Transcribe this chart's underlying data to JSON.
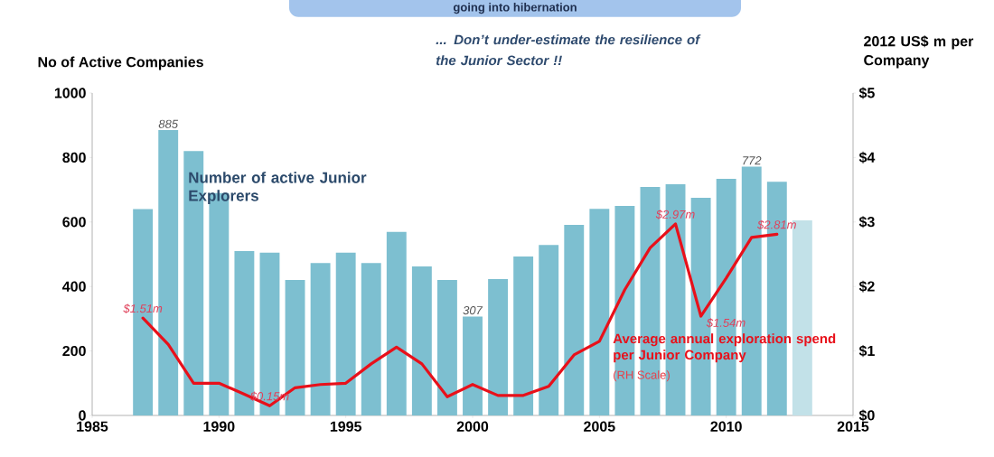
{
  "chart_data": {
    "type": "bar",
    "ylabel": "No of Active Companies",
    "y2label": "2012 US$ m per Company",
    "annotations": [
      "going into hibernation",
      "... Don’t under-estimate the resilience of the Junior Sector !!",
      "(RH Scale)"
    ],
    "xlim": [
      1985,
      2015
    ],
    "xticks": [
      1985,
      1990,
      1995,
      2000,
      2005,
      2010,
      2015
    ],
    "ylim": [
      0,
      1000
    ],
    "yticks": [
      0,
      200,
      400,
      600,
      800,
      1000
    ],
    "y2lim": [
      0,
      5
    ],
    "y2ticks": [
      {
        "value": 0,
        "label": "$0"
      },
      {
        "value": 1,
        "label": "$1"
      },
      {
        "value": 2,
        "label": "$2"
      },
      {
        "value": 3,
        "label": "$3"
      },
      {
        "value": 4,
        "label": "$4"
      },
      {
        "value": 5,
        "label": "$5"
      }
    ],
    "marker": "none",
    "series": [
      {
        "name": "Number of active Junior Explorers",
        "x": [
          1987,
          1988,
          1989,
          1990,
          1991,
          1992,
          1993,
          1994,
          1995,
          1996,
          1997,
          1998,
          1999,
          2000,
          2001,
          2002,
          2003,
          2004,
          2005,
          2006,
          2007,
          2008,
          2009,
          2010,
          2011,
          2012,
          2013
        ],
        "values": [
          640,
          885,
          820,
          690,
          510,
          505,
          420,
          473,
          505,
          473,
          569,
          462,
          420,
          307,
          423,
          493,
          529,
          591,
          641,
          650,
          709,
          717,
          675,
          734,
          772,
          725,
          605
        ],
        "colors": [
          "#7dbfd0",
          "#7dbfd0",
          "#7dbfd0",
          "#7dbfd0",
          "#7dbfd0",
          "#7dbfd0",
          "#7dbfd0",
          "#7dbfd0",
          "#7dbfd0",
          "#7dbfd0",
          "#7dbfd0",
          "#7dbfd0",
          "#7dbfd0",
          "#7dbfd0",
          "#7dbfd0",
          "#7dbfd0",
          "#7dbfd0",
          "#7dbfd0",
          "#7dbfd0",
          "#7dbfd0",
          "#7dbfd0",
          "#7dbfd0",
          "#7dbfd0",
          "#7dbfd0",
          "#7dbfd0",
          "#7dbfd0",
          "#c2e1e8"
        ],
        "value_labels": [
          null,
          "885",
          null,
          null,
          null,
          null,
          null,
          null,
          null,
          null,
          null,
          null,
          null,
          "307",
          null,
          null,
          null,
          null,
          null,
          null,
          null,
          null,
          null,
          null,
          "772",
          null,
          null
        ]
      },
      {
        "type": "line",
        "axis": "y2",
        "name": "Average annual exploration spend per Junior Company",
        "color": "#e8101a",
        "x": [
          1987,
          1988,
          1989,
          1990,
          1991,
          1992,
          1993,
          1994,
          1995,
          1996,
          1997,
          1998,
          1999,
          2000,
          2001,
          2002,
          2003,
          2004,
          2005,
          2006,
          2007,
          2008,
          2009,
          2010,
          2011,
          2012
        ],
        "values": [
          1.51,
          1.1,
          0.5,
          0.5,
          0.33,
          0.15,
          0.43,
          0.48,
          0.5,
          0.8,
          1.06,
          0.8,
          0.29,
          0.48,
          0.31,
          0.31,
          0.45,
          0.94,
          1.15,
          1.95,
          2.6,
          2.97,
          1.54,
          2.13,
          2.76,
          2.81
        ],
        "value_labels": [
          "$1.51m",
          null,
          null,
          null,
          null,
          "$0.15m",
          null,
          null,
          null,
          null,
          null,
          null,
          null,
          null,
          null,
          null,
          null,
          null,
          null,
          null,
          null,
          "$2.97m",
          "$1.54m",
          null,
          null,
          "$2.81m"
        ]
      }
    ]
  }
}
